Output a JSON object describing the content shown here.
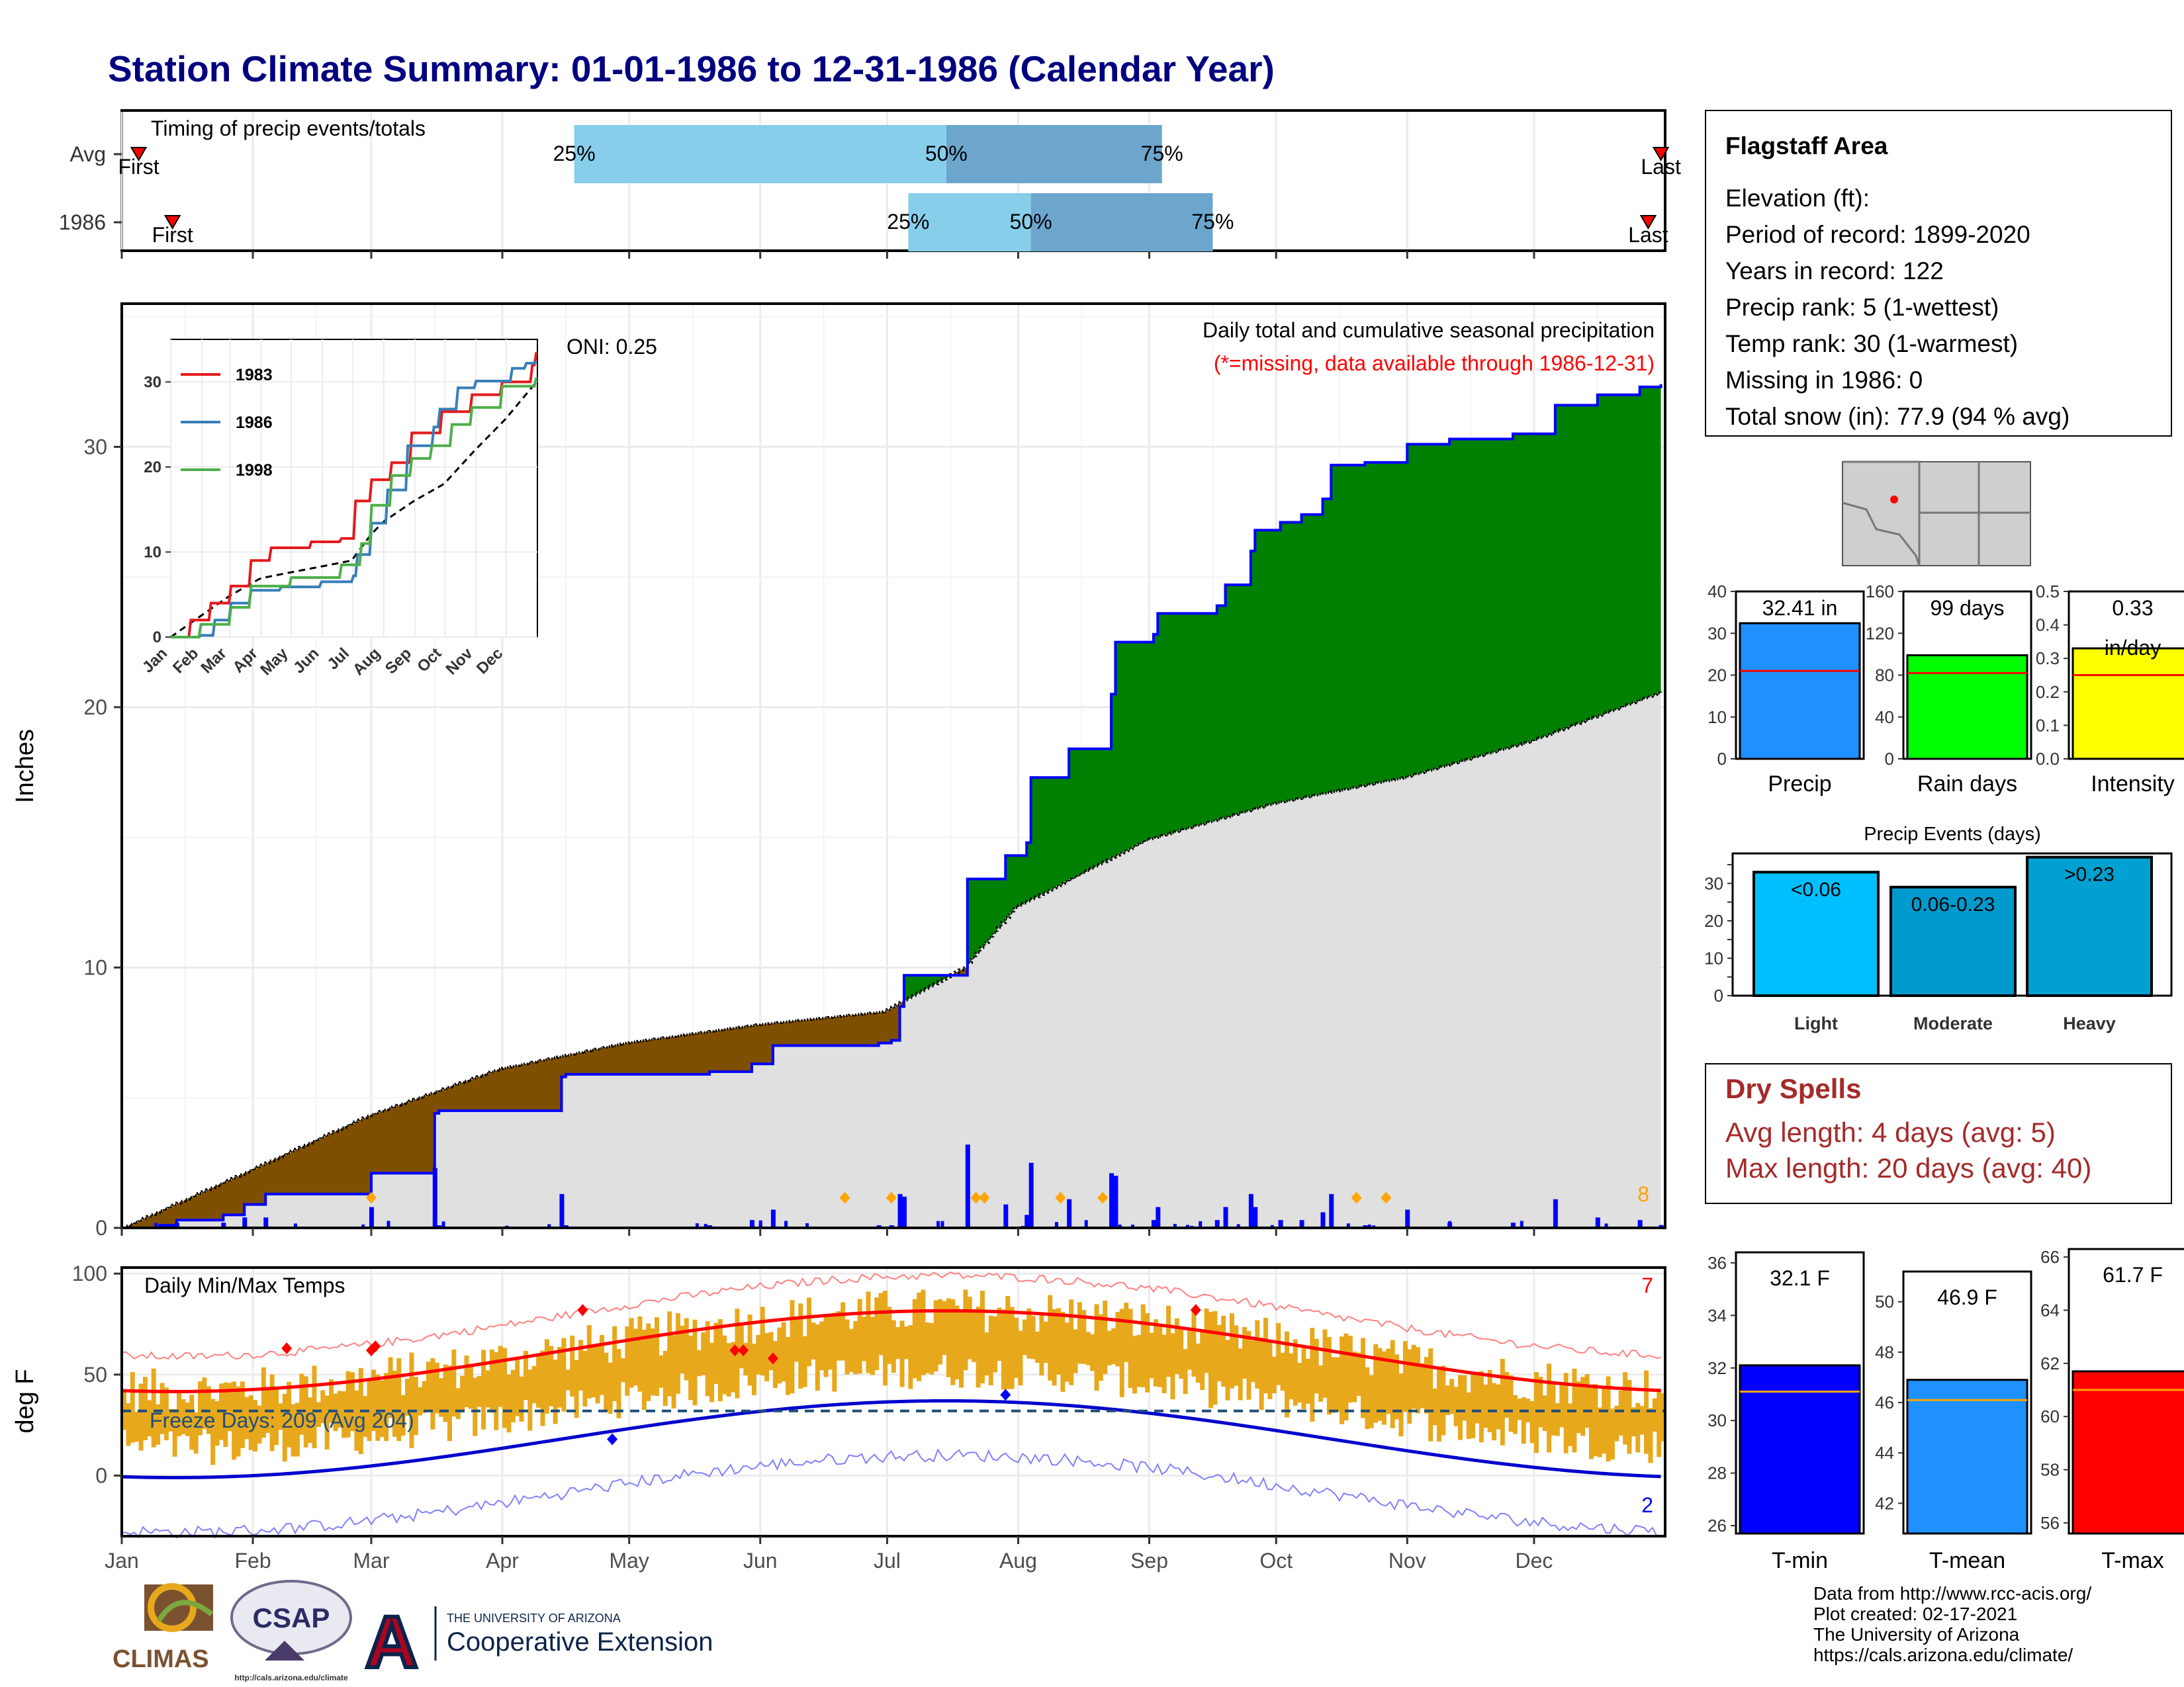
{
  "title": "Station Climate Summary: 01-01-1986 to 12-31-1986 (Calendar Year)",
  "colors": {
    "title": "#000080",
    "lightblue": "#87ceeb",
    "steelblue": "#6ca6cd",
    "marker": "#ff0000",
    "green": "#008000",
    "brown": "#7f4f00",
    "grey": "#e0e0e0",
    "blue": "#0000ff",
    "gold": "#e8a81c",
    "orange": "#ffa500",
    "drySpell": "#a52a2a"
  },
  "timing": {
    "title": "Timing of precip events/totals",
    "rows": [
      {
        "label": "Avg",
        "first_label": "First",
        "last_label": "Last",
        "first_doy": 5,
        "last_doy": 365,
        "p25": 108,
        "p50": 196,
        "p75": 247,
        "p25_label": "25%",
        "p50_label": "50%",
        "p75_label": "75%"
      },
      {
        "label": "1986",
        "first_label": "First",
        "last_label": "Last",
        "first_doy": 13,
        "last_doy": 362,
        "p25": 187,
        "p50": 216,
        "p75": 259,
        "p25_label": "25%",
        "p50_label": "50%",
        "p75_label": "75%"
      }
    ]
  },
  "main": {
    "ylabel": "Inches",
    "yticks": [
      0,
      10,
      20,
      30
    ],
    "ylim": [
      0,
      35.5
    ],
    "title1": "Daily total and cumulative seasonal precipitation",
    "title2": "(*=missing, data available through 1986-12-31)",
    "oni": "ONI: 0.25",
    "count_label": "8",
    "months": [
      "Jan",
      "Feb",
      "Mar",
      "Apr",
      "May",
      "Jun",
      "Jul",
      "Aug",
      "Sep",
      "Oct",
      "Nov",
      "Dec"
    ]
  },
  "inset": {
    "yticks": [
      "0",
      "10",
      "20",
      "30"
    ],
    "months": [
      "Jan",
      "Feb",
      "Mar",
      "Apr",
      "May",
      "Jun",
      "Jul",
      "Aug",
      "Sep",
      "Oct",
      "Nov",
      "Dec"
    ],
    "legend": [
      {
        "name": "1983",
        "color": "#e41a1c"
      },
      {
        "name": "1986",
        "color": "#377eb8"
      },
      {
        "name": "1998",
        "color": "#4daf4a"
      }
    ]
  },
  "temps": {
    "title": "Daily Min/Max Temps",
    "ylabel": "deg F",
    "yticks": [
      0,
      50,
      100
    ],
    "ylim": [
      -30,
      103
    ],
    "freeze_label": "Freeze Days: 209 (Avg 204)",
    "freeze_line": 32,
    "max_count": "7",
    "min_count": "2"
  },
  "chart_data": {
    "type": "area",
    "series": [
      {
        "name": "1986",
        "x_doy": [
          1,
          10,
          14,
          25,
          30,
          35,
          60,
          75,
          76,
          105,
          106,
          140,
          150,
          155,
          180,
          183,
          185,
          186,
          200,
          201,
          210,
          211,
          215,
          216,
          225,
          235,
          236,
          245,
          246,
          260,
          262,
          268,
          269,
          275,
          280,
          285,
          287,
          290,
          295,
          305,
          315,
          330,
          340,
          350,
          360,
          365
        ],
        "cumulative_in": [
          0,
          0.1,
          0.3,
          0.5,
          0.9,
          1.3,
          2.1,
          4.4,
          4.5,
          5.8,
          5.9,
          6.0,
          6.3,
          7.0,
          7.1,
          7.2,
          8.5,
          9.7,
          9.7,
          13.4,
          14.3,
          14.3,
          14.8,
          17.3,
          18.4,
          20.5,
          22.5,
          22.8,
          23.6,
          23.9,
          24.7,
          26.0,
          26.8,
          27.1,
          27.4,
          28.0,
          29.3,
          29.3,
          29.4,
          30.1,
          30.3,
          30.5,
          31.6,
          32.0,
          32.3,
          32.41
        ]
      },
      {
        "name": "Avg",
        "x_doy": [
          1,
          31,
          59,
          90,
          120,
          151,
          181,
          200,
          212,
          243,
          273,
          304,
          334,
          365
        ],
        "cumulative_in": [
          0,
          2.2,
          4.3,
          6.1,
          7.1,
          7.8,
          8.3,
          10.0,
          12.3,
          14.9,
          16.3,
          17.3,
          18.7,
          20.6
        ]
      }
    ],
    "daily_total_markers_doy": [
      60,
      172,
      183,
      203,
      205,
      223,
      233,
      293,
      300
    ]
  },
  "info": {
    "station": "Flagstaff Area",
    "lines": [
      "Elevation (ft):",
      "Period of record: 1899-2020",
      "Years in record: 122",
      "Precip rank: 5 (1-wettest)",
      "Temp rank: 30 (1-warmest)",
      "Missing in 1986: 0",
      "Total snow (in): 77.9 (94 % avg)"
    ]
  },
  "stat_bars": [
    {
      "name": "Precip",
      "value": 32.41,
      "label": "32.41 in",
      "avg": 21,
      "ymax": 40,
      "ticks": [
        "0",
        "10",
        "20",
        "30",
        "40"
      ],
      "color": "#1e90ff"
    },
    {
      "name": "Rain days",
      "value": 99,
      "label": "99 days",
      "avg": 82,
      "ymax": 160,
      "ticks": [
        "0",
        "40",
        "80",
        "120",
        "160"
      ],
      "color": "#00ff00"
    },
    {
      "name": "Intensity",
      "value": 0.33,
      "label": "0.33",
      "label2": "in/day",
      "avg": 0.25,
      "ymax": 0.5,
      "ticks": [
        "0.0",
        "0.1",
        "0.2",
        "0.3",
        "0.4",
        "0.5"
      ],
      "color": "#ffff00"
    }
  ],
  "events": {
    "title": "Precip Events (days)",
    "ticks": [
      "0",
      "10",
      "20",
      "30"
    ],
    "ymax": 38,
    "bars": [
      {
        "name": "Light",
        "label": "<0.06",
        "value": 33,
        "color": "#00bfff"
      },
      {
        "name": "Moderate",
        "label": "0.06-0.23",
        "value": 29,
        "color": "#009acd"
      },
      {
        "name": "Heavy",
        "label": ">0.23",
        "value": 37,
        "color": "#00a0d0"
      }
    ]
  },
  "dry": {
    "title": "Dry Spells",
    "line1": "Avg length: 4 days (avg: 5)",
    "line2": "Max length: 20 days (avg: 40)"
  },
  "temp_bars": [
    {
      "name": "T-min",
      "value": 32.1,
      "label": "32.1 F",
      "avg": 31.1,
      "ymin": 25.7,
      "ymax": 36.4,
      "ticks": [
        "26",
        "28",
        "30",
        "32",
        "34",
        "36"
      ],
      "tick_vals": [
        26,
        28,
        30,
        32,
        34,
        36
      ],
      "color": "#0000ff"
    },
    {
      "name": "T-mean",
      "value": 46.9,
      "label": "46.9 F",
      "avg": 46.1,
      "ymin": 40.8,
      "ymax": 51.2,
      "ticks": [
        "42",
        "44",
        "46",
        "48",
        "50"
      ],
      "tick_vals": [
        42,
        44,
        46,
        48,
        50
      ],
      "color": "#1e90ff"
    },
    {
      "name": "T-max",
      "value": 61.7,
      "label": "61.7 F",
      "avg": 61.0,
      "ymin": 55.6,
      "ymax": 66.3,
      "ticks": [
        "56",
        "58",
        "60",
        "62",
        "64",
        "66"
      ],
      "tick_vals": [
        56,
        58,
        60,
        62,
        64,
        66
      ],
      "color": "#ff0000"
    }
  ],
  "footer": {
    "credits": [
      "Data from http://www.rcc-acis.org/",
      "Plot created: 02-17-2021",
      "The University of Arizona",
      "https://cals.arizona.edu/climate/"
    ],
    "ua_small": "THE UNIVERSITY OF ARIZONA",
    "ua_big": "Cooperative Extension",
    "climas": "CLIMAS",
    "csap": "CSAP",
    "csap_url": "http://cals.arizona.edu/climate"
  }
}
